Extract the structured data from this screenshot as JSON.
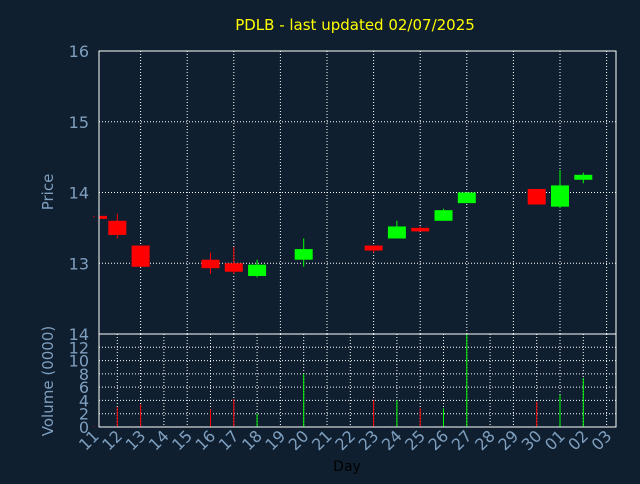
{
  "colors": {
    "background": "#0f1f2f",
    "title": "#ffff00",
    "axis_text": "#7f9fbf",
    "frame": "#ffffff",
    "grid": "#ffffff",
    "up": "#00ff00",
    "down": "#ff0000"
  },
  "chart_data": [
    {
      "type": "candlestick",
      "title": "PDLB - last updated 02/07/2025",
      "ylabel": "Price",
      "xlabel": "",
      "ylim": [
        12.0,
        16.0
      ],
      "yticks": [
        "13",
        "14",
        "15",
        "16"
      ],
      "grid": true,
      "categories": [
        "11",
        "12",
        "13",
        "14",
        "15",
        "16",
        "17",
        "18",
        "19",
        "20",
        "21",
        "22",
        "23",
        "24",
        "25",
        "26",
        "27",
        "28",
        "29",
        "30",
        "01",
        "02",
        "03"
      ],
      "candles": [
        {
          "x": "11",
          "open": 13.67,
          "high": 13.67,
          "low": 13.65,
          "close": 13.65
        },
        {
          "x": "12",
          "open": 13.6,
          "high": 13.7,
          "low": 13.35,
          "close": 13.4
        },
        {
          "x": "13",
          "open": 13.25,
          "high": 13.25,
          "low": 12.95,
          "close": 12.95
        },
        {
          "x": "16",
          "open": 13.05,
          "high": 13.15,
          "low": 12.85,
          "close": 12.93
        },
        {
          "x": "17",
          "open": 13.0,
          "high": 13.23,
          "low": 12.85,
          "close": 12.88
        },
        {
          "x": "18",
          "open": 12.82,
          "high": 13.05,
          "low": 12.8,
          "close": 12.98
        },
        {
          "x": "20",
          "open": 13.05,
          "high": 13.35,
          "low": 12.95,
          "close": 13.2
        },
        {
          "x": "23",
          "open": 13.25,
          "high": 13.25,
          "low": 13.15,
          "close": 13.18
        },
        {
          "x": "24",
          "open": 13.35,
          "high": 13.6,
          "low": 13.35,
          "close": 13.52
        },
        {
          "x": "25",
          "open": 13.5,
          "high": 13.52,
          "low": 13.45,
          "close": 13.45
        },
        {
          "x": "26",
          "open": 13.6,
          "high": 13.77,
          "low": 13.6,
          "close": 13.75
        },
        {
          "x": "27",
          "open": 13.85,
          "high": 14.0,
          "low": 13.85,
          "close": 14.0
        },
        {
          "x": "30",
          "open": 14.05,
          "high": 14.05,
          "low": 13.83,
          "close": 13.83
        },
        {
          "x": "01",
          "open": 13.8,
          "high": 14.32,
          "low": 13.78,
          "close": 14.1
        },
        {
          "x": "02",
          "open": 14.18,
          "high": 14.28,
          "low": 14.13,
          "close": 14.25
        }
      ]
    },
    {
      "type": "bar",
      "title": "",
      "ylabel": "Volume (0000)",
      "xlabel": "Day",
      "ylim": [
        0,
        14
      ],
      "yticks": [
        "0",
        "2",
        "4",
        "6",
        "8",
        "10",
        "12",
        "14"
      ],
      "grid": true,
      "categories": [
        "11",
        "12",
        "13",
        "14",
        "15",
        "16",
        "17",
        "18",
        "19",
        "20",
        "21",
        "22",
        "23",
        "24",
        "25",
        "26",
        "27",
        "28",
        "29",
        "30",
        "01",
        "02",
        "03"
      ],
      "bars": [
        {
          "x": "11",
          "value": 0.1,
          "direction": "down"
        },
        {
          "x": "12",
          "value": 3.0,
          "direction": "down"
        },
        {
          "x": "13",
          "value": 3.4,
          "direction": "down"
        },
        {
          "x": "16",
          "value": 2.7,
          "direction": "down"
        },
        {
          "x": "17",
          "value": 4.2,
          "direction": "down"
        },
        {
          "x": "18",
          "value": 2.0,
          "direction": "up"
        },
        {
          "x": "20",
          "value": 8.0,
          "direction": "up"
        },
        {
          "x": "23",
          "value": 4.1,
          "direction": "down"
        },
        {
          "x": "24",
          "value": 4.0,
          "direction": "up"
        },
        {
          "x": "25",
          "value": 2.8,
          "direction": "down"
        },
        {
          "x": "26",
          "value": 2.8,
          "direction": "up"
        },
        {
          "x": "27",
          "value": 14.0,
          "direction": "up"
        },
        {
          "x": "30",
          "value": 3.8,
          "direction": "down"
        },
        {
          "x": "01",
          "value": 4.8,
          "direction": "up"
        },
        {
          "x": "02",
          "value": 7.4,
          "direction": "up"
        }
      ]
    }
  ]
}
